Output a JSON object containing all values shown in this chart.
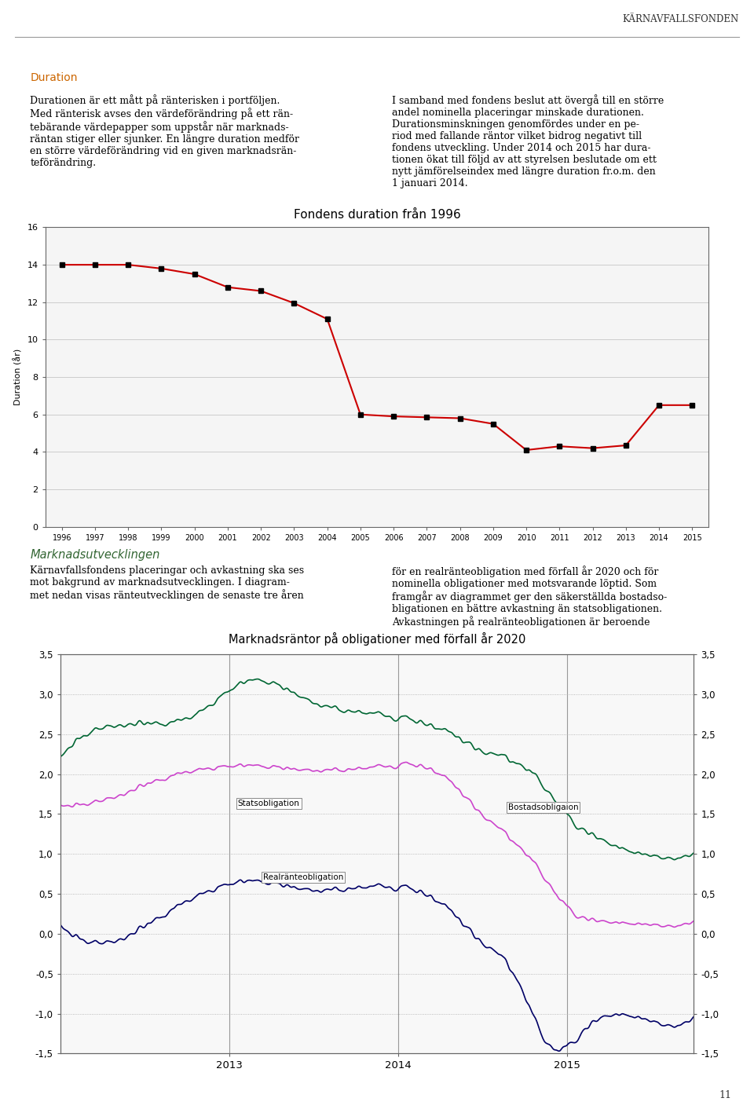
{
  "chart1": {
    "title": "Fondens duration från 1996",
    "ylabel": "Duration (år)",
    "years": [
      1996,
      1997,
      1998,
      1999,
      2000,
      2001,
      2002,
      2003,
      2004,
      2005,
      2006,
      2007,
      2008,
      2009,
      2010,
      2011,
      2012,
      2013,
      2014,
      2015
    ],
    "values": [
      14.0,
      14.0,
      14.0,
      13.8,
      13.5,
      12.8,
      12.6,
      11.95,
      11.1,
      6.0,
      5.9,
      5.85,
      5.8,
      5.5,
      4.1,
      4.3,
      4.2,
      4.35,
      6.5,
      6.5
    ],
    "ylim": [
      0,
      16
    ],
    "yticks": [
      0,
      2,
      4,
      6,
      8,
      10,
      12,
      14,
      16
    ],
    "line_color": "#cc0000",
    "marker_color": "#000000",
    "bg_color": "#ffffff",
    "grid_color": "#aaaaaa"
  },
  "chart2": {
    "title": "Marknadsräntor på obligationer med förfall år 2020",
    "ylim": [
      -1.5,
      3.5
    ],
    "yticks": [
      -1.5,
      -1.0,
      -0.5,
      0.0,
      0.5,
      1.0,
      1.5,
      2.0,
      2.5,
      3.0,
      3.5
    ],
    "ytick_labels": [
      "-1,5",
      "-1,0",
      "-0,5",
      "0,0",
      "0,5",
      "1,0",
      "1,5",
      "2,0",
      "2,5",
      "3,0",
      "3,5"
    ],
    "green_label": "Bostadsobligaion",
    "pink_label": "Statsobligation",
    "blue_label": "Realränteobligation",
    "green_color": "#006600",
    "pink_color": "#cc44cc",
    "blue_color": "#000080",
    "bg_color": "#ffffff",
    "grid_color": "#aaaaaa"
  },
  "page": {
    "header": "KÄRNAVFALLSFONDEN",
    "footer": "11",
    "bg_color": "#ffffff",
    "text_color": "#000000",
    "heading1_color": "#cc6600",
    "heading2_color": "#336633",
    "body_text1_left": "Duration\n\nDurationen är ett mått på ränterisken i portföljen.\nMed ränterisk avses den värdeförändring på ett räntebärande värdepapper som uppstår när marknadsräntan stiger eller sjunker. En längre duration medför en större värdeförändring vid en given marknadsränteförändring.",
    "body_text1_right": "I samband med fondens beslut att övergå till en större andel nominella placeringar minskade durationen. Durationsminskningen genomfördes under en period med fallande räntor vilket bidrog negativt till fondens utveckling. Under 2014 och 2015 har durationen ökat till följd av att styrelsen beslutade om ett nytt jämförelseindex med längre duration fr.o.m. den 1 januari 2014.",
    "body_text2_left": "Marknadsutvecklingen\n\nKärnavfallsfondens placeringar och avkastning ska ses mot bakgrund av marknadsutvecklingen. I diagrammet nedan visas ränteutvecklingen de senaste tre åren",
    "body_text2_right": "för en realränteobligation med förfall år 2020 och för nominella obligationer med motsvarande löptid. Som framgår av diagrammet ger den säkerställda bostadsobligationen en bättre avkastning än statsobligationen. Avkastningen på realränteobligationen är beroende"
  }
}
